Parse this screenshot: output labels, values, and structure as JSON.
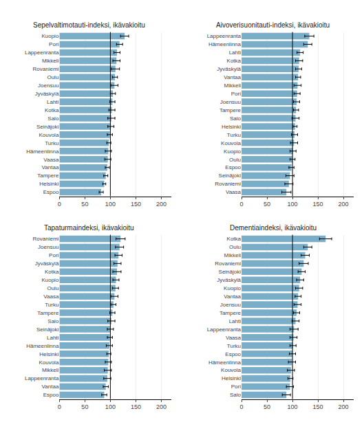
{
  "chart_data": [
    {
      "type": "bar",
      "orientation": "horizontal",
      "title": "Sepelvaltimotauti-indeksi, ikävakioitu",
      "categories": [
        "Kuopio",
        "Pori",
        "Lappeenranta",
        "Mikkeli",
        "Rovaniemi",
        "Oulu",
        "Joensuu",
        "Jyväskylä",
        "Lahti",
        "Kotka",
        "Salo",
        "Seinäjoki",
        "Kouvola",
        "Turku",
        "Hämeenlinna",
        "Vaasa",
        "Vantaa",
        "Tampere",
        "Helsinki",
        "Espoo"
      ],
      "values": [
        128,
        118,
        113,
        112,
        110,
        109,
        108,
        105,
        104,
        103,
        102,
        101,
        99,
        97,
        96,
        95,
        94,
        91,
        88,
        82
      ],
      "errors": [
        8,
        6,
        6,
        7,
        8,
        5,
        7,
        5,
        5,
        6,
        7,
        6,
        5,
        4,
        6,
        6,
        4,
        4,
        3,
        4
      ],
      "reference_line": 100,
      "color": "#7aaec8",
      "xlim": [
        0,
        220
      ],
      "xticks": [
        0,
        50,
        100,
        150,
        200
      ],
      "grid": true
    },
    {
      "type": "bar",
      "orientation": "horizontal",
      "title": "Aivoverisuonitauti-indeksi, ikävakioitu",
      "categories": [
        "Lappeenranta",
        "Hämeenlinna",
        "Lahti",
        "Kotka",
        "Jyväskylä",
        "Vantaa",
        "Mikkeli",
        "Pori",
        "Joensuu",
        "Tampere",
        "Salo",
        "Helsinki",
        "Turku",
        "Kouvola",
        "Kuopio",
        "Oulu",
        "Espoo",
        "Seinäjoki",
        "Rovaniemi",
        "Vaasa"
      ],
      "values": [
        133,
        130,
        115,
        113,
        112,
        111,
        110,
        109,
        108,
        107,
        106,
        105,
        104,
        103,
        101,
        100,
        98,
        95,
        93,
        88
      ],
      "errors": [
        9,
        8,
        6,
        7,
        6,
        5,
        7,
        6,
        6,
        5,
        7,
        4,
        6,
        7,
        6,
        5,
        5,
        8,
        8,
        9
      ],
      "reference_line": 100,
      "color": "#7aaec8",
      "xlim": [
        0,
        220
      ],
      "xticks": [
        0,
        50,
        100,
        150,
        200
      ],
      "grid": true
    },
    {
      "type": "bar",
      "orientation": "horizontal",
      "title": "Tapaturmaindeksi, ikävakioitu",
      "categories": [
        "Rovaniemi",
        "Joensuu",
        "Pori",
        "Jyväskylä",
        "Kotka",
        "Kuopio",
        "Oulu",
        "Vaasa",
        "Turku",
        "Tampere",
        "Salo",
        "Seinäjoki",
        "Lahti",
        "Hämeenlinna",
        "Helsinki",
        "Kouvola",
        "Mikkeli",
        "Lappeenranta",
        "Vantaa",
        "Espoo"
      ],
      "values": [
        120,
        118,
        116,
        114,
        113,
        111,
        110,
        108,
        106,
        104,
        102,
        100,
        99,
        98,
        97,
        96,
        95,
        94,
        91,
        88
      ],
      "errors": [
        9,
        8,
        7,
        7,
        8,
        6,
        6,
        7,
        5,
        5,
        7,
        6,
        5,
        6,
        4,
        6,
        7,
        7,
        5,
        5
      ],
      "reference_line": 100,
      "color": "#7aaec8",
      "xlim": [
        0,
        220
      ],
      "xticks": [
        0,
        50,
        100,
        150,
        200
      ],
      "grid": true
    },
    {
      "type": "bar",
      "orientation": "horizontal",
      "title": "Dementiaindeksi, ikävakioitu",
      "categories": [
        "Kotka",
        "Oulu",
        "Mikkeli",
        "Rovaniemi",
        "Seinäjoki",
        "Jyväskylä",
        "Kuopio",
        "Vantaa",
        "Joensuu",
        "Tampere",
        "Lahti",
        "Lappeenranta",
        "Vaasa",
        "Turku",
        "Espoo",
        "Hämeenlinna",
        "Kouvola",
        "Helsinki",
        "Pori",
        "Salo"
      ],
      "values": [
        165,
        130,
        125,
        122,
        118,
        115,
        113,
        111,
        110,
        108,
        106,
        103,
        102,
        101,
        100,
        99,
        97,
        96,
        95,
        88
      ],
      "errors": [
        12,
        8,
        8,
        9,
        7,
        7,
        7,
        6,
        7,
        6,
        7,
        8,
        7,
        6,
        6,
        7,
        7,
        5,
        7,
        8
      ],
      "reference_line": 100,
      "color": "#7aaec8",
      "xlim": [
        0,
        220
      ],
      "xticks": [
        0,
        50,
        100,
        150,
        200
      ],
      "grid": true
    }
  ]
}
